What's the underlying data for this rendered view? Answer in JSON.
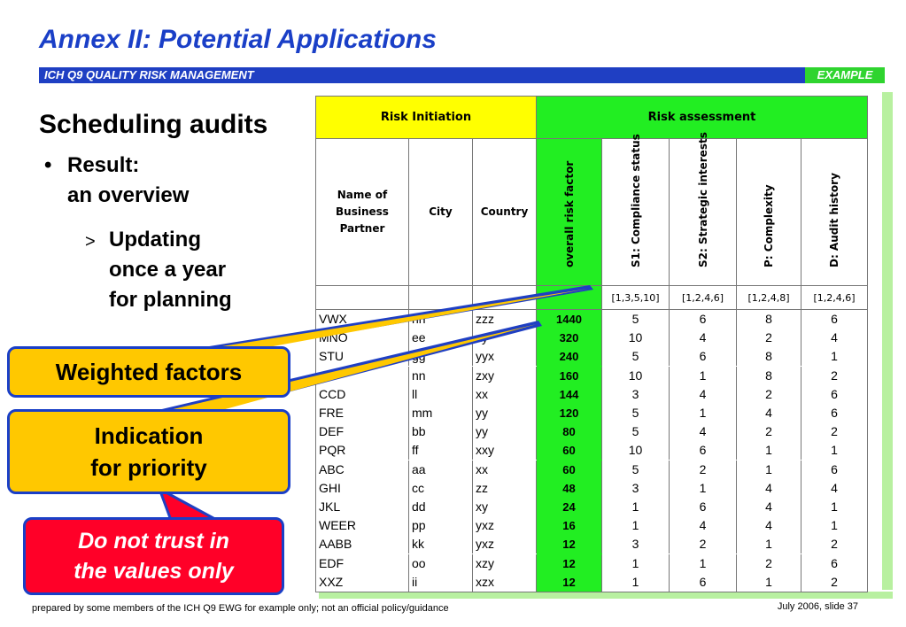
{
  "slide": {
    "title": "Annex II: Potential Applications",
    "band_label": "ICH Q9 QUALITY RISK MANAGEMENT",
    "band_example": "EXAMPLE",
    "heading": "Scheduling audits",
    "bullet_line1": "Result:",
    "bullet_line2": "an overview",
    "sub_line1": "Updating",
    "sub_line2": "once a year",
    "sub_line3": "for planning",
    "bullet_glyph": "•",
    "sub_glyph": ">"
  },
  "callouts": {
    "weighted": "Weighted factors",
    "indication_line1": "Indication",
    "indication_line2": "for priority",
    "warning_line1": "Do not trust in",
    "warning_line2": "the values only"
  },
  "table": {
    "group_headers": {
      "risk_initiation": "Risk Initiation",
      "risk_assessment": "Risk assessment"
    },
    "columns": {
      "name_line1": "Name of",
      "name_line2": "Business",
      "name_line3": "Partner",
      "city": "City",
      "country": "Country",
      "overall": "overall risk factor",
      "s1": "S1: Compliance status",
      "s2": "S2: Strategic interests",
      "p": "P: Complexity",
      "d": "D: Audit history"
    },
    "weights": {
      "s1": "[1,3,5,10]",
      "s2": "[1,2,4,6]",
      "p": "[1,2,4,8]",
      "d": "[1,2,4,6]"
    },
    "rows": [
      {
        "name": "VWX",
        "city": "nn",
        "country": "zzz",
        "overall": "1440",
        "s1": "5",
        "s2": "6",
        "p": "8",
        "d": "6"
      },
      {
        "name": "MNO",
        "city": "ee",
        "country": "xy",
        "overall": "320",
        "s1": "10",
        "s2": "4",
        "p": "2",
        "d": "4"
      },
      {
        "name": "STU",
        "city": "gg",
        "country": "yyx",
        "overall": "240",
        "s1": "5",
        "s2": "6",
        "p": "8",
        "d": "1"
      },
      {
        "name": "",
        "city": "nn",
        "country": "zxy",
        "overall": "160",
        "s1": "10",
        "s2": "1",
        "p": "8",
        "d": "2"
      },
      {
        "name": "CCD",
        "city": "ll",
        "country": "xx",
        "overall": "144",
        "s1": "3",
        "s2": "4",
        "p": "2",
        "d": "6"
      },
      {
        "name": "FRE",
        "city": "mm",
        "country": "yy",
        "overall": "120",
        "s1": "5",
        "s2": "1",
        "p": "4",
        "d": "6"
      },
      {
        "name": "DEF",
        "city": "bb",
        "country": "yy",
        "overall": "80",
        "s1": "5",
        "s2": "4",
        "p": "2",
        "d": "2"
      },
      {
        "name": "PQR",
        "city": "ff",
        "country": "xxy",
        "overall": "60",
        "s1": "10",
        "s2": "6",
        "p": "1",
        "d": "1"
      },
      {
        "name": "ABC",
        "city": "aa",
        "country": "xx",
        "overall": "60",
        "s1": "5",
        "s2": "2",
        "p": "1",
        "d": "6"
      },
      {
        "name": "GHI",
        "city": "cc",
        "country": "zz",
        "overall": "48",
        "s1": "3",
        "s2": "1",
        "p": "4",
        "d": "4"
      },
      {
        "name": "JKL",
        "city": "dd",
        "country": "xy",
        "overall": "24",
        "s1": "1",
        "s2": "6",
        "p": "4",
        "d": "1"
      },
      {
        "name": "WEER",
        "city": "pp",
        "country": "yxz",
        "overall": "16",
        "s1": "1",
        "s2": "4",
        "p": "4",
        "d": "1"
      },
      {
        "name": "AABB",
        "city": "kk",
        "country": "yxz",
        "overall": "12",
        "s1": "3",
        "s2": "2",
        "p": "1",
        "d": "2"
      },
      {
        "name": "EDF",
        "city": "oo",
        "country": "xzy",
        "overall": "12",
        "s1": "1",
        "s2": "1",
        "p": "2",
        "d": "6"
      },
      {
        "name": "XXZ",
        "city": "ii",
        "country": "xzx",
        "overall": "12",
        "s1": "1",
        "s2": "6",
        "p": "1",
        "d": "2"
      }
    ]
  },
  "footer": {
    "left": "prepared by some members of the ICH Q9 EWG for example only; not an official policy/guidance",
    "right": "July 2006, slide 37"
  },
  "colors": {
    "title_blue": "#1a3fc7",
    "band_blue": "#1f3fc3",
    "green": "#22ee22",
    "yellow": "#ffff00",
    "callout_orange": "#ffc800",
    "warning_red": "#ff0028"
  }
}
